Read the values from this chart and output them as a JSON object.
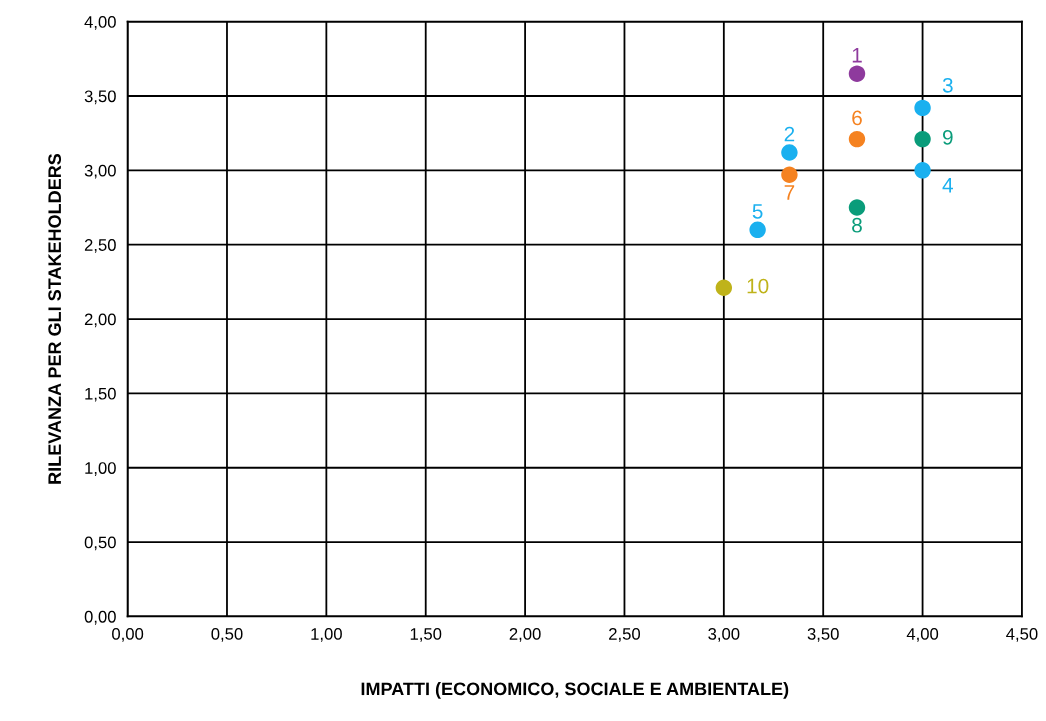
{
  "chart_data": {
    "type": "scatter",
    "xlabel": "IMPATTI (ECONOMICO, SOCIALE E AMBIENTALE)",
    "ylabel": "RILEVANZA PER GLI STAKEHOLDERS",
    "series": [
      {
        "name": "1",
        "color": "#8e3a9d",
        "x": [
          3.67
        ],
        "values": [
          3.65
        ]
      },
      {
        "name": "2",
        "color": "#1ab0ef",
        "x": [
          3.33
        ],
        "values": [
          3.12
        ]
      },
      {
        "name": "3",
        "color": "#1ab0ef",
        "x": [
          4.0
        ],
        "values": [
          3.42
        ]
      },
      {
        "name": "4",
        "color": "#1ab0ef",
        "x": [
          4.0
        ],
        "values": [
          3.0
        ]
      },
      {
        "name": "5",
        "color": "#1ab0ef",
        "x": [
          3.17
        ],
        "values": [
          2.6
        ]
      },
      {
        "name": "6",
        "color": "#f58220",
        "x": [
          3.67
        ],
        "values": [
          3.21
        ]
      },
      {
        "name": "7",
        "color": "#f58220",
        "x": [
          3.33
        ],
        "values": [
          2.97
        ]
      },
      {
        "name": "8",
        "color": "#0a9c7a",
        "x": [
          3.67
        ],
        "values": [
          2.75
        ]
      },
      {
        "name": "9",
        "color": "#0a9c7a",
        "x": [
          4.0
        ],
        "values": [
          3.21
        ]
      },
      {
        "name": "10",
        "color": "#bfb31a",
        "x": [
          3.0
        ],
        "values": [
          2.21
        ]
      }
    ],
    "xlim": [
      0,
      4.5
    ],
    "xticks": [
      {
        "value": 0,
        "label": "0,00"
      },
      {
        "value": 0.5,
        "label": "0,50"
      },
      {
        "value": 1,
        "label": "1,00"
      },
      {
        "value": 1.5,
        "label": "1,50"
      },
      {
        "value": 2,
        "label": "2,00"
      },
      {
        "value": 2.5,
        "label": "2,50"
      },
      {
        "value": 3,
        "label": "3,00"
      },
      {
        "value": 3.5,
        "label": "3,50"
      },
      {
        "value": 4,
        "label": "4,00"
      },
      {
        "value": 4.5,
        "label": "4,50"
      }
    ],
    "ylim": [
      0,
      4
    ],
    "yticks": [
      {
        "value": 0,
        "label": "0,00"
      },
      {
        "value": 0.5,
        "label": "0,50"
      },
      {
        "value": 1,
        "label": "1,00"
      },
      {
        "value": 1.5,
        "label": "1,50"
      },
      {
        "value": 2,
        "label": "2,00"
      },
      {
        "value": 2.5,
        "label": "2,50"
      },
      {
        "value": 3,
        "label": "3,00"
      },
      {
        "value": 3.5,
        "label": "3,50"
      },
      {
        "value": 4,
        "label": "4,00"
      }
    ],
    "grid": true,
    "marker": "circle",
    "legend": false
  }
}
